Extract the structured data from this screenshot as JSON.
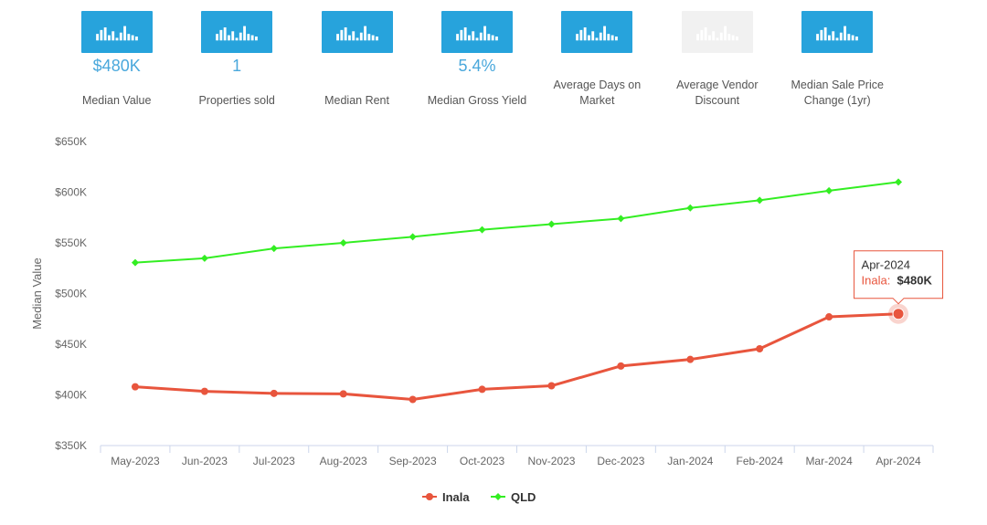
{
  "tiles": [
    {
      "value": "$480K",
      "label": "Median Value",
      "icon": "bar-chart-icon",
      "enabled": true
    },
    {
      "value": "1",
      "label": "Properties sold",
      "icon": "bar-chart-icon",
      "enabled": true
    },
    {
      "value": "",
      "label": "Median Rent",
      "icon": "bar-chart-icon",
      "enabled": true
    },
    {
      "value": "5.4%",
      "label": "Median Gross Yield",
      "icon": "bar-chart-icon",
      "enabled": true
    },
    {
      "value": "",
      "label": "Average Days on Market",
      "icon": "bar-chart-icon",
      "enabled": true
    },
    {
      "value": "",
      "label": "Average Vendor Discount",
      "icon": "bar-chart-icon",
      "enabled": false
    },
    {
      "value": "",
      "label": "Median Sale Price Change (1yr)",
      "icon": "bar-chart-icon",
      "enabled": true
    }
  ],
  "colors": {
    "tile_icon": "#27a3dc",
    "tile_icon_disabled": "#f1f1f1",
    "tile_value": "#4aa8dc",
    "inala": "#e8553d",
    "qld": "#33ee22"
  },
  "chart_data": {
    "type": "line",
    "categories": [
      "May-2023",
      "Jun-2023",
      "Jul-2023",
      "Aug-2023",
      "Sep-2023",
      "Oct-2023",
      "Nov-2023",
      "Dec-2023",
      "Jan-2024",
      "Feb-2024",
      "Mar-2024",
      "Apr-2024"
    ],
    "series": [
      {
        "name": "Inala",
        "color": "#e8553d",
        "values": [
          408000,
          403500,
          401500,
          401000,
          395500,
          405500,
          409000,
          428500,
          435000,
          445500,
          477000,
          480000
        ]
      },
      {
        "name": "QLD",
        "color": "#33ee22",
        "values": [
          530500,
          534800,
          544500,
          550000,
          556000,
          563000,
          568500,
          574000,
          584500,
          592000,
          601500,
          610000
        ]
      }
    ],
    "ylabel": "Median Value",
    "xlabel": "",
    "ylim": [
      350000,
      650000
    ],
    "yticks": [
      350000,
      400000,
      450000,
      500000,
      550000,
      600000,
      650000
    ],
    "ytick_labels": [
      "$350K",
      "$400K",
      "$450K",
      "$500K",
      "$550K",
      "$600K",
      "$650K"
    ],
    "grid": false,
    "legend": "bottom-center",
    "tooltip": {
      "category": "Apr-2024",
      "series": "Inala",
      "series_label": "Inala:",
      "value_label": "$480K"
    }
  }
}
